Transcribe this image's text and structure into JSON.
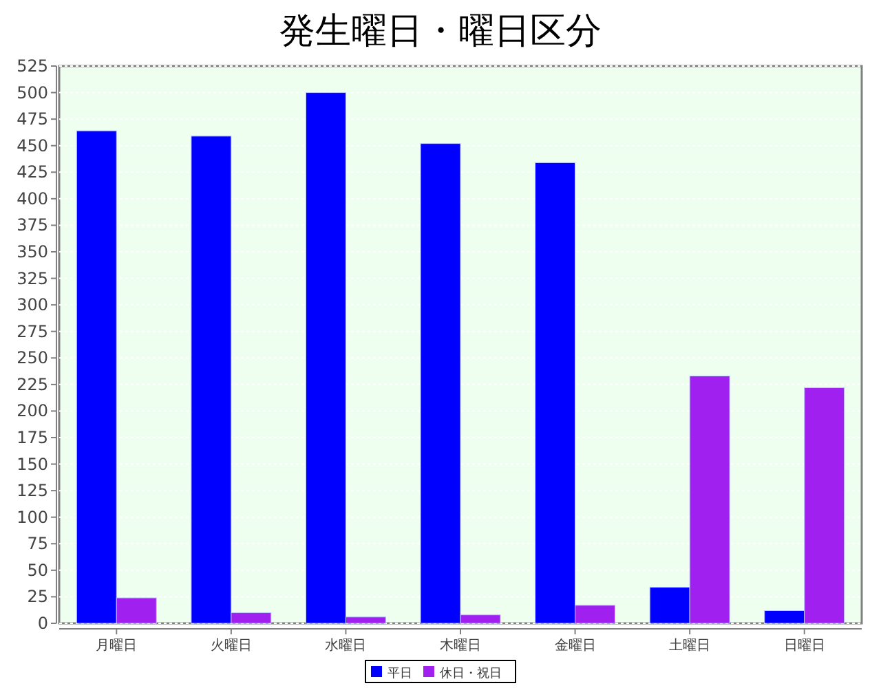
{
  "chart_data": {
    "type": "bar",
    "title": "発生曜日・曜日区分",
    "categories": [
      "月曜日",
      "火曜日",
      "水曜日",
      "木曜日",
      "金曜日",
      "土曜日",
      "日曜日"
    ],
    "series": [
      {
        "name": "平日",
        "color": "#0000ff",
        "values": [
          464,
          459,
          500,
          452,
          434,
          34,
          12
        ]
      },
      {
        "name": "休日・祝日",
        "color": "#a020f0",
        "values": [
          24,
          10,
          6,
          8,
          17,
          233,
          222
        ]
      }
    ],
    "ylim": [
      0,
      525
    ],
    "yticks": [
      0,
      25,
      50,
      75,
      100,
      125,
      150,
      175,
      200,
      225,
      250,
      275,
      300,
      325,
      350,
      375,
      400,
      425,
      450,
      475,
      500,
      525
    ],
    "grid": "y",
    "legend": "bottom"
  }
}
